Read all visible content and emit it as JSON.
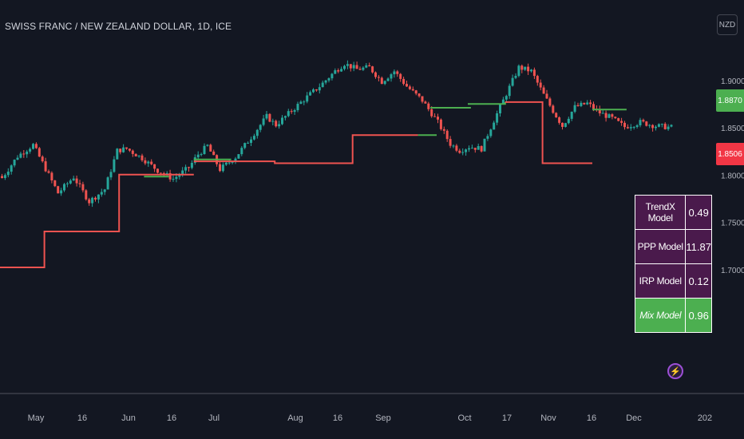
{
  "header": {
    "symbol_title": "SWISS FRANC / NEW ZEALAND DOLLAR, 1D, ICE",
    "currency_button": "NZD"
  },
  "price_tags": {
    "green": "1.8870",
    "red": "1.8506"
  },
  "models_table": {
    "rows": [
      {
        "name": "TrendX Model",
        "value": "0.49"
      },
      {
        "name": "PPP Model",
        "value": "11.87"
      },
      {
        "name": "IRP Model",
        "value": "0.12"
      },
      {
        "name": "Mix Model",
        "value": "0.96"
      }
    ]
  },
  "colors": {
    "background": "#131722",
    "up": "#26a69a",
    "down": "#ef5350",
    "model_line_green": "#4caf50",
    "model_line_red": "#ef5350",
    "table_purple": "#4a1a4c",
    "table_green": "#4caf50"
  },
  "icons": {
    "bolt": "lightning-bolt-icon"
  },
  "chart_data": {
    "type": "candlestick",
    "title": "SWISS FRANC / NEW ZEALAND DOLLAR, 1D, ICE",
    "y_axis": {
      "ticks": [
        1.9,
        1.85,
        1.8,
        1.75,
        1.7
      ],
      "tick_labels": [
        "1.9000",
        "1.8500",
        "1.8000",
        "1.7500",
        "1.7000"
      ]
    },
    "x_axis": {
      "tick_labels": [
        "May",
        "16",
        "Jun",
        "16",
        "Jul",
        "Aug",
        "16",
        "Sep",
        "Oct",
        "17",
        "Nov",
        "16",
        "Dec",
        "202"
      ]
    },
    "close_path": [
      {
        "i": 0,
        "p": 1.797
      },
      {
        "i": 5,
        "p": 1.82
      },
      {
        "i": 10,
        "p": 1.832
      },
      {
        "i": 13,
        "p": 1.813
      },
      {
        "i": 18,
        "p": 1.781
      },
      {
        "i": 23,
        "p": 1.798
      },
      {
        "i": 28,
        "p": 1.772
      },
      {
        "i": 33,
        "p": 1.785
      },
      {
        "i": 37,
        "p": 1.826
      },
      {
        "i": 40,
        "p": 1.828
      },
      {
        "i": 45,
        "p": 1.818
      },
      {
        "i": 50,
        "p": 1.805
      },
      {
        "i": 55,
        "p": 1.796
      },
      {
        "i": 60,
        "p": 1.808
      },
      {
        "i": 63,
        "p": 1.822
      },
      {
        "i": 66,
        "p": 1.831
      },
      {
        "i": 70,
        "p": 1.806
      },
      {
        "i": 75,
        "p": 1.819
      },
      {
        "i": 80,
        "p": 1.84
      },
      {
        "i": 85,
        "p": 1.862
      },
      {
        "i": 88,
        "p": 1.853
      },
      {
        "i": 92,
        "p": 1.865
      },
      {
        "i": 97,
        "p": 1.88
      },
      {
        "i": 102,
        "p": 1.894
      },
      {
        "i": 107,
        "p": 1.91
      },
      {
        "i": 110,
        "p": 1.918
      },
      {
        "i": 114,
        "p": 1.912
      },
      {
        "i": 118,
        "p": 1.914
      },
      {
        "i": 122,
        "p": 1.899
      },
      {
        "i": 126,
        "p": 1.91
      },
      {
        "i": 130,
        "p": 1.894
      },
      {
        "i": 135,
        "p": 1.879
      },
      {
        "i": 140,
        "p": 1.856
      },
      {
        "i": 144,
        "p": 1.833
      },
      {
        "i": 147,
        "p": 1.826
      },
      {
        "i": 150,
        "p": 1.83
      },
      {
        "i": 154,
        "p": 1.828
      },
      {
        "i": 158,
        "p": 1.858
      },
      {
        "i": 163,
        "p": 1.893
      },
      {
        "i": 166,
        "p": 1.914
      },
      {
        "i": 170,
        "p": 1.91
      },
      {
        "i": 174,
        "p": 1.885
      },
      {
        "i": 177,
        "p": 1.868
      },
      {
        "i": 180,
        "p": 1.852
      },
      {
        "i": 184,
        "p": 1.872
      },
      {
        "i": 188,
        "p": 1.876
      },
      {
        "i": 192,
        "p": 1.866
      },
      {
        "i": 196,
        "p": 1.86
      },
      {
        "i": 200,
        "p": 1.851
      },
      {
        "i": 205,
        "p": 1.856
      },
      {
        "i": 210,
        "p": 1.852
      },
      {
        "i": 215,
        "p": 1.8506
      }
    ],
    "model_segments": [
      {
        "color": "red",
        "points": [
          [
            -5,
            1.7024
          ],
          [
            14,
            1.7024
          ],
          [
            14,
            1.7404
          ],
          [
            38,
            1.7404
          ],
          [
            38,
            1.8006
          ],
          [
            62,
            1.8006
          ]
        ]
      },
      {
        "color": "green",
        "points": [
          [
            46,
            1.7984
          ],
          [
            54,
            1.7984
          ]
        ]
      },
      {
        "color": "green",
        "points": [
          [
            62,
            1.8166
          ],
          [
            74,
            1.8166
          ]
        ]
      },
      {
        "color": "red",
        "points": [
          [
            62,
            1.8146
          ],
          [
            88,
            1.8146
          ],
          [
            88,
            1.8126
          ],
          [
            113,
            1.8126
          ],
          [
            113,
            1.8423
          ],
          [
            134,
            1.8423
          ]
        ]
      },
      {
        "color": "green",
        "points": [
          [
            134,
            1.8423
          ],
          [
            140,
            1.8423
          ]
        ]
      },
      {
        "color": "green",
        "points": [
          [
            138,
            1.8713
          ],
          [
            151,
            1.8713
          ]
        ]
      },
      {
        "color": "green",
        "points": [
          [
            150,
            1.8753
          ],
          [
            162,
            1.8753
          ],
          [
            162,
            1.8773
          ]
        ]
      },
      {
        "color": "red",
        "points": [
          [
            162,
            1.8773
          ],
          [
            174,
            1.8773
          ],
          [
            174,
            1.8126
          ],
          [
            190,
            1.8126
          ]
        ]
      },
      {
        "color": "green",
        "points": [
          [
            190,
            1.8693
          ],
          [
            201,
            1.8693
          ]
        ]
      }
    ]
  }
}
